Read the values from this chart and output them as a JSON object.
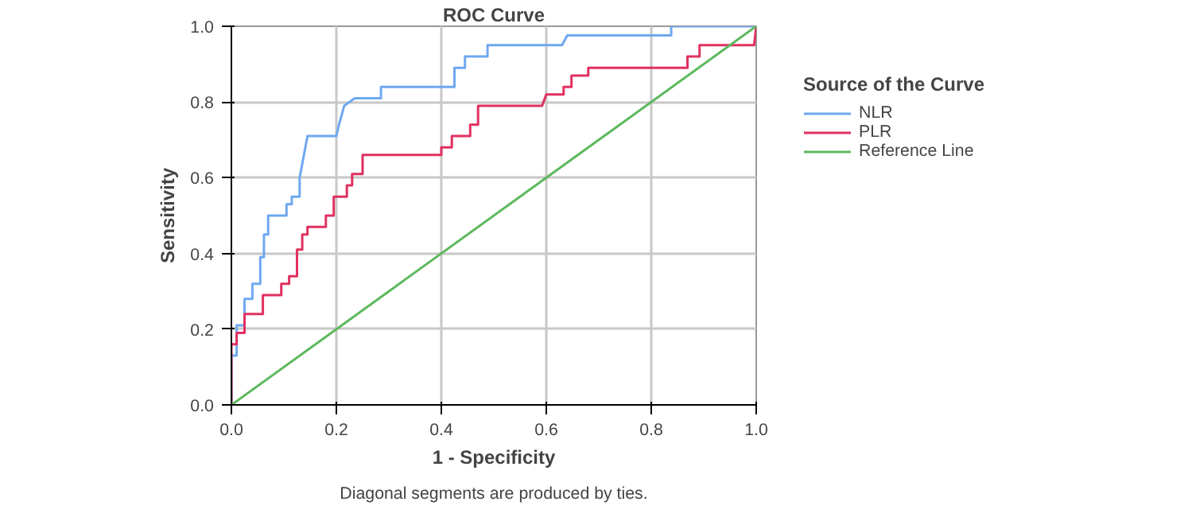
{
  "chart_data": {
    "type": "line",
    "title": "ROC Curve",
    "xlabel": "1 - Specificity",
    "ylabel": "Sensitivity",
    "legend_title": "Source of the Curve",
    "annotations": [
      "Diagonal segments are produced by ties."
    ],
    "xlim": [
      0,
      1
    ],
    "ylim": [
      0,
      1
    ],
    "xticks": [
      {
        "value": 0,
        "label": "0.0"
      },
      {
        "value": 0.2,
        "label": "0.2"
      },
      {
        "value": 0.4,
        "label": "0.4"
      },
      {
        "value": 0.6,
        "label": "0.6"
      },
      {
        "value": 0.8,
        "label": "0.8"
      },
      {
        "value": 1,
        "label": "1.0"
      }
    ],
    "yticks": [
      {
        "value": 0,
        "label": "0.0"
      },
      {
        "value": 0.2,
        "label": "0.2"
      },
      {
        "value": 0.4,
        "label": "0.4"
      },
      {
        "value": 0.6,
        "label": "0.6"
      },
      {
        "value": 0.8,
        "label": "0.8"
      },
      {
        "value": 1,
        "label": "1.0"
      }
    ],
    "grid": true,
    "legend": "right",
    "marker": "none",
    "line_style": "solid",
    "series": [
      {
        "name": "NLR",
        "color": "#6fa8f0",
        "x": [
          0,
          0,
          0.01,
          0.01,
          0.025,
          0.025,
          0.04,
          0.04,
          0.055,
          0.055,
          0.062,
          0.062,
          0.07,
          0.07,
          0.105,
          0.105,
          0.115,
          0.115,
          0.13,
          0.13,
          0.145,
          0.2,
          0.205,
          0.215,
          0.235,
          0.285,
          0.285,
          0.425,
          0.425,
          0.445,
          0.445,
          0.488,
          0.488,
          0.63,
          0.64,
          0.838,
          0.838,
          1
        ],
        "values": [
          0,
          0.13,
          0.13,
          0.21,
          0.21,
          0.28,
          0.28,
          0.32,
          0.32,
          0.39,
          0.39,
          0.45,
          0.45,
          0.5,
          0.5,
          0.53,
          0.53,
          0.55,
          0.55,
          0.6,
          0.71,
          0.71,
          0.74,
          0.79,
          0.81,
          0.81,
          0.84,
          0.84,
          0.89,
          0.89,
          0.92,
          0.92,
          0.95,
          0.95,
          0.976,
          0.976,
          1,
          1
        ]
      },
      {
        "name": "PLR",
        "color": "#e0315f",
        "x": [
          0,
          0,
          0.003,
          0.01,
          0.01,
          0.025,
          0.025,
          0.06,
          0.06,
          0.095,
          0.095,
          0.11,
          0.11,
          0.125,
          0.125,
          0.135,
          0.135,
          0.145,
          0.145,
          0.18,
          0.18,
          0.195,
          0.195,
          0.22,
          0.22,
          0.23,
          0.23,
          0.25,
          0.25,
          0.4,
          0.4,
          0.42,
          0.42,
          0.455,
          0.455,
          0.47,
          0.47,
          0.592,
          0.6,
          0.633,
          0.633,
          0.648,
          0.648,
          0.68,
          0.68,
          0.869,
          0.869,
          0.892,
          0.892,
          0.996,
          1
        ],
        "values": [
          0,
          0.16,
          0.16,
          0.16,
          0.19,
          0.19,
          0.24,
          0.24,
          0.29,
          0.29,
          0.32,
          0.32,
          0.34,
          0.34,
          0.41,
          0.41,
          0.45,
          0.45,
          0.47,
          0.47,
          0.5,
          0.5,
          0.55,
          0.55,
          0.58,
          0.58,
          0.61,
          0.61,
          0.66,
          0.66,
          0.68,
          0.68,
          0.71,
          0.71,
          0.74,
          0.74,
          0.79,
          0.79,
          0.82,
          0.82,
          0.84,
          0.84,
          0.87,
          0.87,
          0.89,
          0.89,
          0.92,
          0.92,
          0.95,
          0.95,
          1
        ]
      },
      {
        "name": "Reference Line",
        "color": "#5cb85c",
        "x": [
          0,
          1
        ],
        "values": [
          0,
          1
        ]
      }
    ]
  }
}
